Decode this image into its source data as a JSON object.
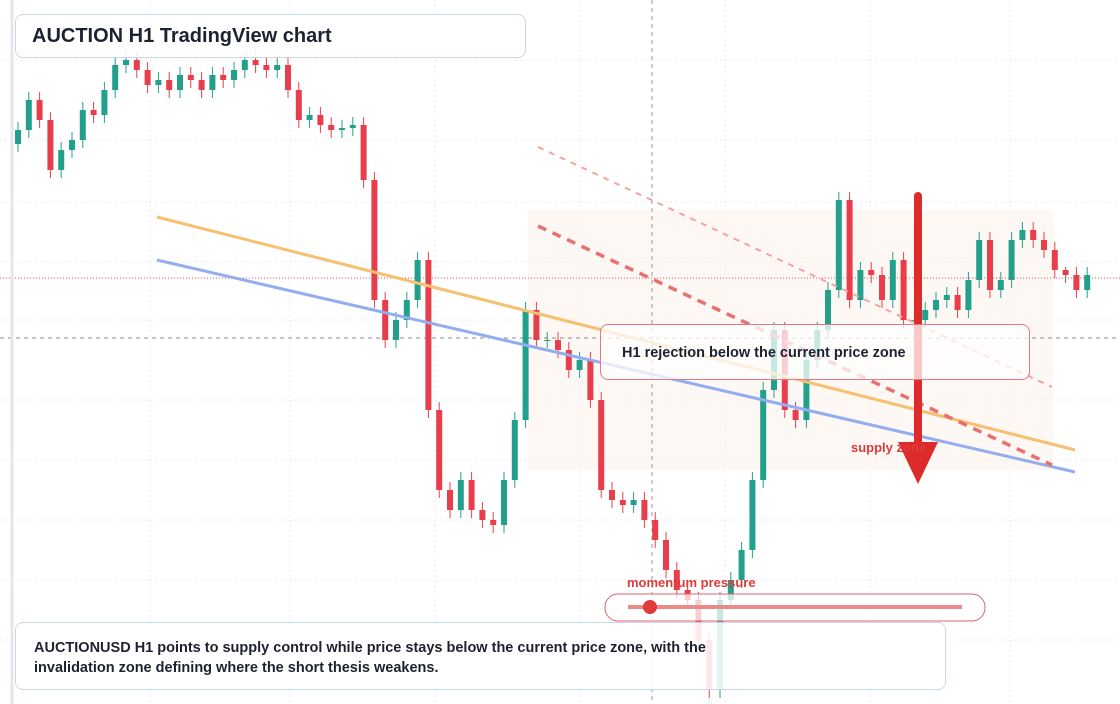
{
  "chart_data": {
    "type": "candlestick",
    "title": "AUCTION H1 TradingView chart",
    "annotations": [
      "H1 rejection below the current price zone",
      "supply zone",
      "momentum pressure"
    ],
    "caption": "AUCTIONUSD H1 points to supply control while price stays below the current price zone, with the invalidation zone defining where the short thesis weakens.",
    "colors": {
      "up": "#22a08c",
      "down": "#e83e4c"
    },
    "ylim": [
      0,
      704
    ],
    "candles": [
      [
        560,
        582,
        552,
        574
      ],
      [
        574,
        612,
        566,
        604
      ],
      [
        604,
        612,
        576,
        584
      ],
      [
        584,
        592,
        526,
        534
      ],
      [
        534,
        562,
        526,
        554
      ],
      [
        554,
        572,
        546,
        564
      ],
      [
        564,
        602,
        556,
        594
      ],
      [
        594,
        602,
        581,
        589
      ],
      [
        589,
        622,
        581,
        614
      ],
      [
        614,
        647,
        606,
        639
      ],
      [
        639,
        652,
        631,
        644
      ],
      [
        644,
        652,
        626,
        634
      ],
      [
        634,
        642,
        611,
        619
      ],
      [
        619,
        632,
        611,
        624
      ],
      [
        624,
        632,
        606,
        614
      ],
      [
        614,
        637,
        606,
        629
      ],
      [
        629,
        637,
        616,
        624
      ],
      [
        624,
        632,
        606,
        614
      ],
      [
        614,
        637,
        606,
        629
      ],
      [
        629,
        637,
        616,
        624
      ],
      [
        624,
        642,
        616,
        634
      ],
      [
        634,
        652,
        626,
        644
      ],
      [
        644,
        652,
        631,
        639
      ],
      [
        639,
        647,
        626,
        634
      ],
      [
        634,
        647,
        626,
        639
      ],
      [
        639,
        647,
        606,
        614
      ],
      [
        614,
        622,
        576,
        584
      ],
      [
        584,
        597,
        576,
        589
      ],
      [
        589,
        597,
        571,
        579
      ],
      [
        579,
        587,
        566,
        574
      ],
      [
        574,
        584,
        566,
        576
      ],
      [
        576,
        587,
        568,
        579
      ],
      [
        579,
        587,
        516,
        524
      ],
      [
        524,
        532,
        396,
        404
      ],
      [
        404,
        412,
        356,
        364
      ],
      [
        364,
        392,
        356,
        384
      ],
      [
        384,
        412,
        376,
        404
      ],
      [
        404,
        452,
        396,
        444
      ],
      [
        444,
        452,
        286,
        294
      ],
      [
        294,
        302,
        206,
        214
      ],
      [
        214,
        222,
        186,
        194
      ],
      [
        194,
        232,
        186,
        224
      ],
      [
        224,
        232,
        186,
        194
      ],
      [
        194,
        202,
        176,
        184
      ],
      [
        184,
        192,
        171,
        179
      ],
      [
        179,
        232,
        171,
        224
      ],
      [
        224,
        292,
        216,
        284
      ],
      [
        284,
        402,
        276,
        394
      ],
      [
        394,
        402,
        356,
        364
      ],
      [
        364,
        372,
        356,
        364
      ],
      [
        364,
        372,
        346,
        354
      ],
      [
        354,
        362,
        326,
        334
      ],
      [
        334,
        352,
        326,
        344
      ],
      [
        344,
        352,
        296,
        304
      ],
      [
        304,
        312,
        206,
        214
      ],
      [
        214,
        222,
        196,
        204
      ],
      [
        204,
        212,
        191,
        199
      ],
      [
        199,
        212,
        191,
        204
      ],
      [
        204,
        212,
        176,
        184
      ],
      [
        184,
        192,
        156,
        164
      ],
      [
        164,
        172,
        126,
        134
      ],
      [
        134,
        142,
        106,
        114
      ],
      [
        114,
        122,
        96,
        104
      ],
      [
        104,
        112,
        56,
        64
      ],
      [
        64,
        72,
        6,
        14
      ],
      [
        14,
        112,
        6,
        104
      ],
      [
        104,
        132,
        96,
        124
      ],
      [
        124,
        162,
        116,
        154
      ],
      [
        154,
        232,
        146,
        224
      ],
      [
        224,
        322,
        216,
        314
      ],
      [
        314,
        382,
        306,
        374
      ],
      [
        374,
        382,
        286,
        294
      ],
      [
        294,
        302,
        276,
        284
      ],
      [
        284,
        352,
        276,
        344
      ],
      [
        344,
        382,
        336,
        374
      ],
      [
        374,
        422,
        366,
        414
      ],
      [
        414,
        512,
        406,
        504
      ],
      [
        504,
        512,
        396,
        404
      ],
      [
        404,
        442,
        396,
        434
      ],
      [
        434,
        442,
        421,
        429
      ],
      [
        429,
        437,
        396,
        404
      ],
      [
        404,
        452,
        396,
        444
      ],
      [
        444,
        452,
        376,
        384
      ],
      [
        384,
        392,
        376,
        384
      ],
      [
        384,
        402,
        376,
        394
      ],
      [
        394,
        412,
        386,
        404
      ],
      [
        404,
        417,
        396,
        409
      ],
      [
        409,
        417,
        386,
        394
      ],
      [
        394,
        432,
        386,
        424
      ],
      [
        424,
        472,
        416,
        464
      ],
      [
        464,
        472,
        406,
        414
      ],
      [
        414,
        432,
        406,
        424
      ],
      [
        424,
        472,
        416,
        464
      ],
      [
        464,
        482,
        456,
        474
      ],
      [
        474,
        482,
        456,
        464
      ],
      [
        464,
        472,
        446,
        454
      ],
      [
        454,
        462,
        426,
        434
      ],
      [
        434,
        437,
        421,
        429
      ],
      [
        429,
        437,
        406,
        414
      ],
      [
        414,
        437,
        406,
        429
      ]
    ]
  }
}
